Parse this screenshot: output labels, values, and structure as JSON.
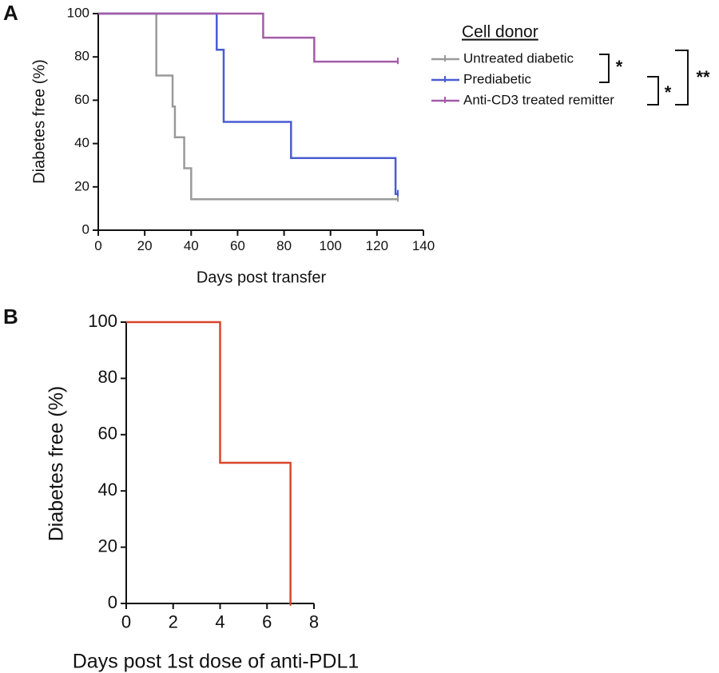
{
  "chart_data": [
    {
      "type": "line",
      "step": true,
      "panel_label": "A",
      "x_label": "Days post transfer",
      "y_label": "Diabetes free (%)",
      "xlim": [
        0,
        140
      ],
      "xticks": [
        0,
        20,
        40,
        60,
        80,
        100,
        120,
        140
      ],
      "ylim": [
        0,
        100
      ],
      "yticks": [
        0,
        20,
        40,
        60,
        80,
        100
      ],
      "legend_title": "Cell donor",
      "series": [
        {
          "name": "Untreated diabetic",
          "color": "#9a9a9a",
          "x": [
            0,
            25,
            32,
            33,
            37,
            40,
            129
          ],
          "values": [
            100,
            71.4,
            57.1,
            42.9,
            28.6,
            14.3,
            14.3
          ]
        },
        {
          "name": "Prediabetic",
          "color": "#4a5cd4",
          "x": [
            0,
            51,
            54,
            83,
            128,
            129
          ],
          "values": [
            100,
            83.3,
            50,
            33.3,
            16.7,
            16.7
          ]
        },
        {
          "name": "Anti-CD3 treated remitter",
          "color": "#a45ba8",
          "x": [
            0,
            71,
            93,
            129
          ],
          "values": [
            100,
            88.9,
            77.8,
            77.8
          ]
        }
      ],
      "annotations": [
        "*",
        "*",
        "**"
      ]
    },
    {
      "type": "line",
      "step": true,
      "panel_label": "B",
      "x_label": "Days post 1st dose of anti-PDL1",
      "y_label": "Diabetes free (%)",
      "xlim": [
        0,
        8
      ],
      "xticks": [
        0,
        2,
        4,
        6,
        8
      ],
      "ylim": [
        0,
        100
      ],
      "yticks": [
        0,
        20,
        40,
        60,
        80,
        100
      ],
      "series": [
        {
          "color": "#d8472b",
          "x": [
            0,
            4,
            7
          ],
          "values": [
            100,
            50,
            0
          ]
        }
      ]
    }
  ]
}
